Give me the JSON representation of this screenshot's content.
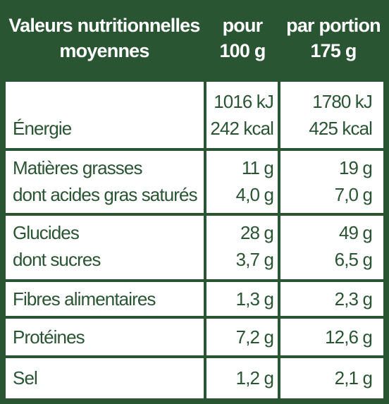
{
  "header": {
    "col_label": [
      "Valeurs nutritionnelles",
      "moyennes"
    ],
    "col_per100": [
      "pour",
      "100 g"
    ],
    "col_portion": [
      "par portion",
      "175 g"
    ]
  },
  "rows": [
    {
      "labels": [
        "",
        "Énergie"
      ],
      "per100": [
        "1016 kJ",
        "242 kcal"
      ],
      "portion": [
        "1780 kJ",
        "425 kcal"
      ]
    },
    {
      "labels": [
        "Matières grasses",
        "dont acides gras saturés"
      ],
      "per100": [
        "11 g",
        "4,0 g"
      ],
      "portion": [
        "19 g",
        "7,0 g"
      ]
    },
    {
      "labels": [
        "Glucides",
        "dont sucres"
      ],
      "per100": [
        "28 g",
        "3,7 g"
      ],
      "portion": [
        "49 g",
        "6,5 g"
      ]
    },
    {
      "labels": [
        "Fibres alimentaires"
      ],
      "per100": [
        "1,3 g"
      ],
      "portion": [
        "2,3 g"
      ]
    },
    {
      "labels": [
        "Protéines"
      ],
      "per100": [
        "7,2 g"
      ],
      "portion": [
        "12,6 g"
      ]
    },
    {
      "labels": [
        "Sel"
      ],
      "per100": [
        "1,2 g"
      ],
      "portion": [
        "2,1 g"
      ]
    }
  ],
  "colors": {
    "brand_green": "#2a5533",
    "background": "#ffffff"
  }
}
